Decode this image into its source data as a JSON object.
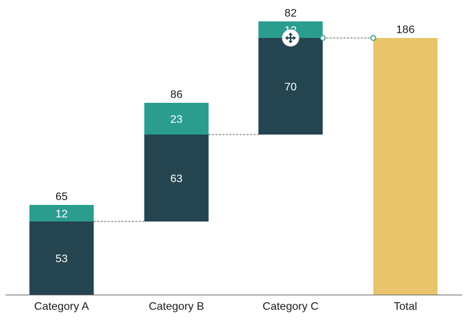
{
  "chart_data": {
    "type": "bar",
    "subtype": "stacked-waterfall",
    "categories": [
      "Category A",
      "Category B",
      "Category C",
      "Total"
    ],
    "stacks": [
      {
        "category": "Category A",
        "segments": [
          53,
          12
        ],
        "total": 65
      },
      {
        "category": "Category B",
        "segments": [
          63,
          23
        ],
        "total": 86
      },
      {
        "category": "Category C",
        "segments": [
          70,
          12
        ],
        "total": 82
      }
    ],
    "final_total": {
      "category": "Total",
      "value": 186
    },
    "grid": false,
    "legend": "none"
  },
  "colors": {
    "segment_1": "#24444f",
    "segment_2": "#2a9d8f",
    "total_bar": "#e9c46a",
    "connector": "#555555",
    "axis": "#666666",
    "handle_stroke": "#2a9d8f"
  },
  "icons": {
    "move_handle": "move-arrows-icon"
  }
}
